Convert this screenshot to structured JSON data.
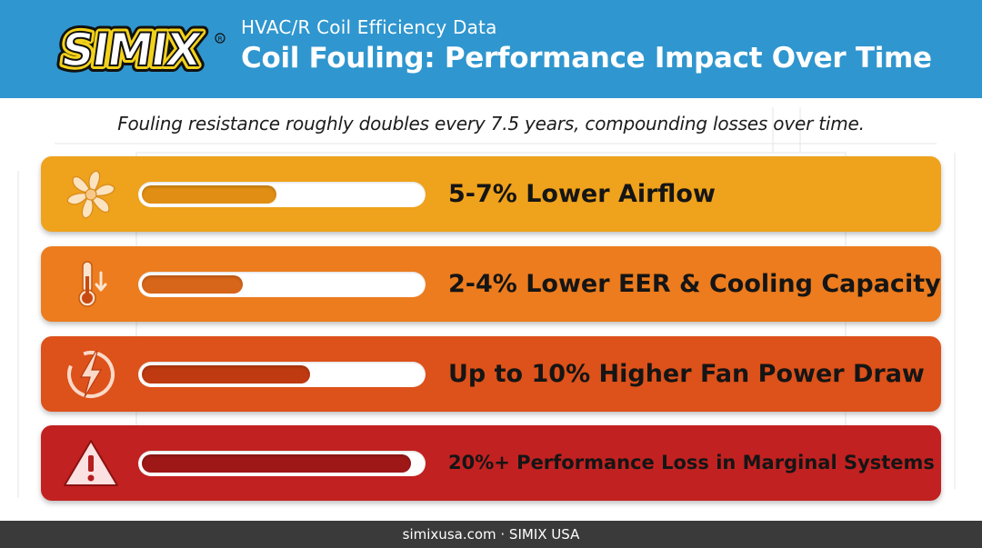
{
  "header": {
    "brand": "SIMIX",
    "subtitle": "HVAC/R Coil Efficiency Data",
    "title": "Coil Fouling: Performance Impact Over Time",
    "background": "#2f96cf"
  },
  "tagline": "Fouling resistance roughly doubles every 7.5 years, compounding losses over time.",
  "impacts": [
    {
      "icon": "fan-icon",
      "label": "5-7% Lower Airflow",
      "level": 0.48,
      "color": "#efa21b",
      "fill": "#e18f14"
    },
    {
      "icon": "thermometer-down-icon",
      "label": "2-4% Lower EER & Cooling Capacity",
      "level": 0.36,
      "color": "#ec7c1e",
      "fill": "#d8661a"
    },
    {
      "icon": "lightning-icon",
      "label": "Up to 10% Higher Fan Power Draw",
      "level": 0.6,
      "color": "#dd511a",
      "fill": "#bf3a10"
    },
    {
      "icon": "warning-icon",
      "label": "20%+ Performance Loss in Marginal Systems",
      "level": 0.96,
      "color": "#c22121",
      "fill": "#9f1818"
    }
  ],
  "footer": {
    "text": "simixusa.com · SIMIX USA"
  }
}
